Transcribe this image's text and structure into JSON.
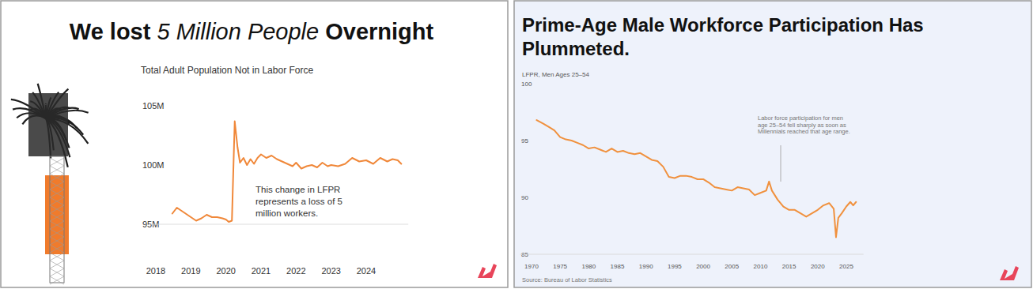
{
  "chart_data": [
    {
      "type": "line",
      "title": "We lost 5 Million People Overnight",
      "subtitle": "Total Adult Population Not in Labor Force",
      "annotation": "This change in LFPR represents a loss of 5 million workers.",
      "x": [
        2018.47,
        2018.6,
        2018.75,
        2018.9,
        2019.0,
        2019.15,
        2019.3,
        2019.45,
        2019.6,
        2019.75,
        2019.9,
        2020.0,
        2020.08,
        2020.17,
        2020.25,
        2020.33,
        2020.4,
        2020.5,
        2020.6,
        2020.7,
        2020.8,
        2020.9,
        2021.0,
        2021.15,
        2021.3,
        2021.45,
        2021.6,
        2021.75,
        2021.9,
        2022.0,
        2022.15,
        2022.3,
        2022.45,
        2022.6,
        2022.75,
        2022.9,
        2023.0,
        2023.2,
        2023.4,
        2023.6,
        2023.8,
        2024.0,
        2024.2,
        2024.4,
        2024.6,
        2024.75,
        2024.9,
        2025.0
      ],
      "values": [
        95.9,
        96.4,
        96.1,
        95.8,
        95.6,
        95.3,
        95.5,
        95.8,
        95.6,
        95.6,
        95.5,
        95.4,
        95.2,
        95.3,
        103.7,
        101.5,
        100.2,
        100.6,
        100.0,
        100.5,
        100.1,
        100.6,
        100.9,
        100.6,
        100.8,
        100.5,
        100.3,
        100.1,
        99.9,
        100.2,
        99.7,
        99.9,
        100.0,
        99.8,
        100.2,
        99.9,
        100.0,
        99.9,
        100.1,
        100.6,
        100.3,
        100.4,
        100.1,
        100.6,
        100.3,
        100.5,
        100.4,
        100.1
      ],
      "color": "#f0883a",
      "xlim": [
        2017.8,
        2025.2
      ],
      "ylim": [
        95,
        105
      ],
      "xticks": [
        2018,
        2019,
        2020,
        2021,
        2022,
        2023,
        2024
      ],
      "yticks": [
        {
          "value": 95,
          "label": "95M"
        },
        {
          "value": 100,
          "label": "100M"
        },
        {
          "value": 105,
          "label": "105M"
        }
      ],
      "grid": false
    },
    {
      "type": "line",
      "title": "Prime-Age Male Workforce Participation Has Plummeted.",
      "subtitle": "LFPR, Men Ages 25–54",
      "annotation": "Labor force participation for men age 25–54 fell sharply as soon as Millennials reached that age range.",
      "source": "Source: Bureau of Labor Statistics",
      "x": [
        1970.9,
        1972,
        1973,
        1974,
        1975,
        1976,
        1977,
        1978,
        1979,
        1980,
        1981,
        1982,
        1983,
        1984,
        1985,
        1986,
        1987,
        1988,
        1989,
        1990,
        1991,
        1992,
        1993,
        1994,
        1995,
        1996,
        1997,
        1998,
        1999,
        2000,
        2001,
        2002,
        2003,
        2004,
        2005,
        2006,
        2007,
        2008,
        2009,
        2010,
        2011,
        2011.5,
        2012,
        2013,
        2014,
        2015,
        2016,
        2017,
        2018,
        2019,
        2020,
        2021,
        2022,
        2022.8,
        2023.2,
        2023.6,
        2024.2,
        2025,
        2025.7,
        2026.2,
        2026.7
      ],
      "values": [
        96.8,
        96.5,
        96.2,
        95.9,
        95.3,
        95.1,
        95.0,
        94.8,
        94.6,
        94.3,
        94.4,
        94.2,
        94.0,
        94.3,
        94.0,
        94.1,
        93.9,
        93.8,
        93.9,
        93.6,
        93.3,
        93.2,
        92.7,
        91.8,
        91.7,
        91.9,
        91.9,
        91.8,
        91.6,
        91.6,
        91.3,
        90.9,
        90.8,
        90.7,
        90.6,
        90.9,
        90.8,
        90.7,
        90.2,
        90.4,
        90.6,
        91.4,
        90.6,
        89.8,
        89.2,
        88.9,
        88.9,
        88.6,
        88.3,
        88.6,
        88.9,
        89.3,
        89.5,
        89.0,
        86.5,
        88.2,
        88.6,
        89.2,
        89.6,
        89.3,
        89.6
      ],
      "color": "#f0913e",
      "xlim": [
        1968,
        2028
      ],
      "ylim": [
        85,
        100
      ],
      "xticks": [
        1970,
        1975,
        1980,
        1985,
        1990,
        1995,
        2000,
        2005,
        2010,
        2015,
        2020,
        2025
      ],
      "yticks": [
        85,
        90,
        95,
        100
      ],
      "grid": false
    }
  ]
}
